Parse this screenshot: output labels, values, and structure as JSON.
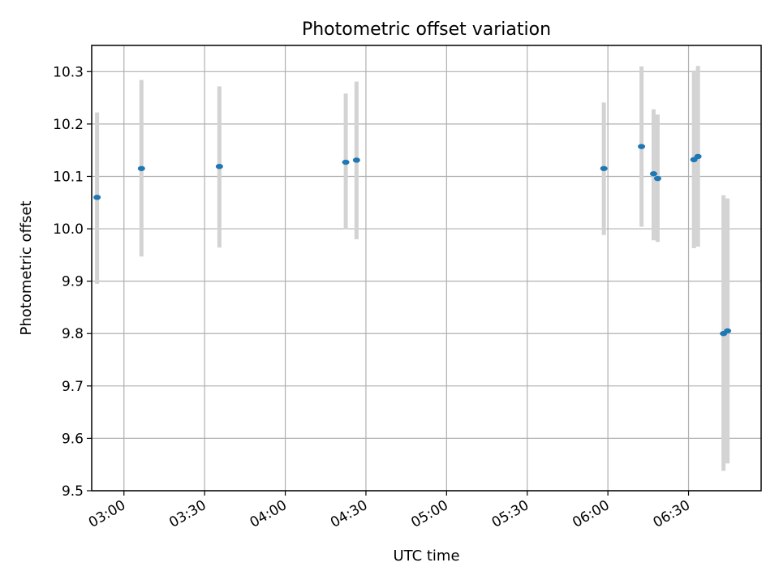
{
  "chart_data": {
    "type": "scatter",
    "title": "Photometric offset variation",
    "xlabel": "UTC time",
    "ylabel": "Photometric offset",
    "x_axis_type": "time",
    "xlim": [
      "02:48",
      "06:57"
    ],
    "ylim": [
      9.5,
      10.35
    ],
    "x_ticks": [
      "03:00",
      "03:30",
      "04:00",
      "04:30",
      "05:00",
      "05:30",
      "06:00",
      "06:30"
    ],
    "y_ticks": [
      "9.5",
      "9.6",
      "9.7",
      "9.8",
      "9.9",
      "10.0",
      "10.1",
      "10.2",
      "10.3"
    ],
    "grid": true,
    "colors": {
      "point": "#1f77b4",
      "errorbar": "#d3d3d3"
    },
    "points": [
      {
        "t": "02:50:00",
        "y": 10.06,
        "err_low": 9.895,
        "err_high": 10.222
      },
      {
        "t": "03:06:30",
        "y": 10.115,
        "err_low": 9.947,
        "err_high": 10.284
      },
      {
        "t": "03:35:30",
        "y": 10.119,
        "err_low": 9.964,
        "err_high": 10.272
      },
      {
        "t": "04:22:30",
        "y": 10.127,
        "err_low": 9.999,
        "err_high": 10.258
      },
      {
        "t": "04:26:30",
        "y": 10.131,
        "err_low": 9.98,
        "err_high": 10.281
      },
      {
        "t": "05:58:30",
        "y": 10.115,
        "err_low": 9.988,
        "err_high": 10.241
      },
      {
        "t": "06:12:30",
        "y": 10.157,
        "err_low": 10.004,
        "err_high": 10.31
      },
      {
        "t": "06:17:00",
        "y": 10.105,
        "err_low": 9.978,
        "err_high": 10.228
      },
      {
        "t": "06:18:30",
        "y": 10.096,
        "err_low": 9.975,
        "err_high": 10.218
      },
      {
        "t": "06:32:00",
        "y": 10.132,
        "err_low": 9.963,
        "err_high": 10.302
      },
      {
        "t": "06:33:30",
        "y": 10.138,
        "err_low": 9.966,
        "err_high": 10.311
      },
      {
        "t": "06:43:00",
        "y": 9.8,
        "err_low": 9.538,
        "err_high": 10.064
      },
      {
        "t": "06:44:30",
        "y": 9.805,
        "err_low": 9.552,
        "err_high": 10.058
      }
    ]
  }
}
